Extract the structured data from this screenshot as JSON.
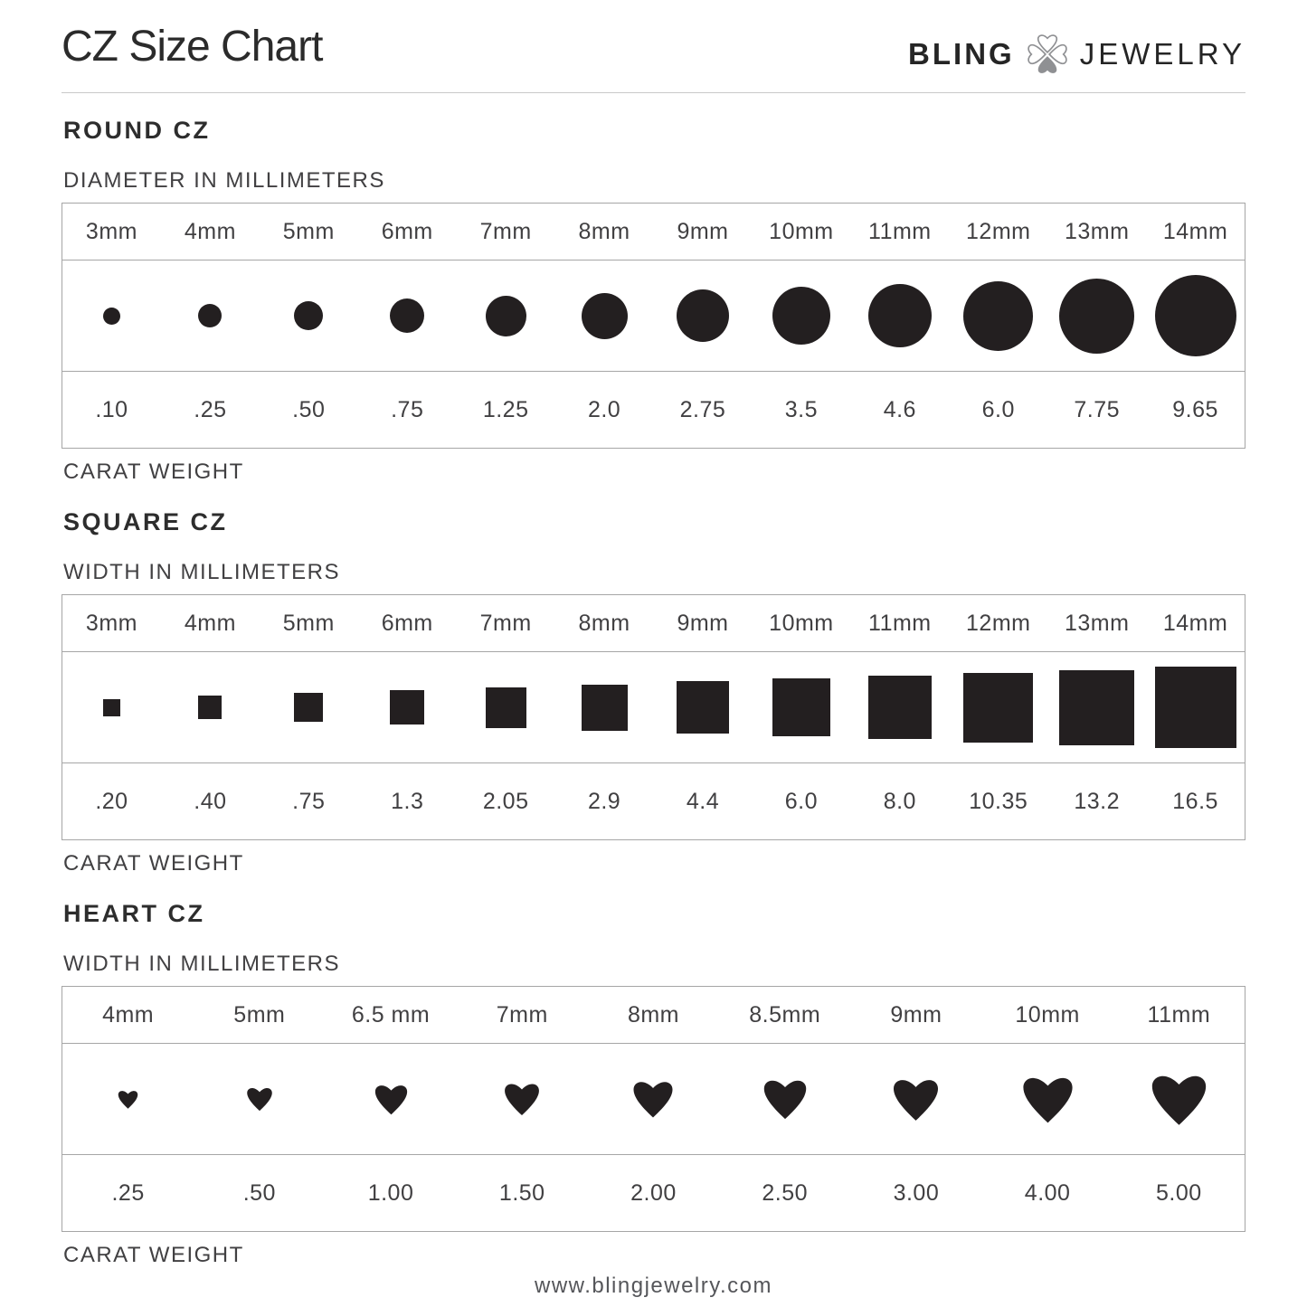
{
  "header": {
    "title": "CZ Size Chart",
    "brand": {
      "name_left": "BLING",
      "name_right": "JEWELRY",
      "clover_color": "#8f9093"
    }
  },
  "colors": {
    "shape": "#231f20",
    "border": "#a6a6a6",
    "text": "#414042"
  },
  "chart_data": [
    {
      "type": "table",
      "shape": "circle",
      "heading": "ROUND CZ",
      "dimension_label": "DIAMETER IN MILLIMETERS",
      "carat_label": "CARAT WEIGHT",
      "sizes_mm": [
        3,
        4,
        5,
        6,
        7,
        8,
        9,
        10,
        11,
        12,
        13,
        14
      ],
      "size_labels": [
        "3mm",
        "4mm",
        "5mm",
        "6mm",
        "7mm",
        "8mm",
        "9mm",
        "10mm",
        "11mm",
        "12mm",
        "13mm",
        "14mm"
      ],
      "carat_weights": [
        ".10",
        ".25",
        ".50",
        ".75",
        "1.25",
        "2.0",
        "2.75",
        "3.5",
        "4.6",
        "6.0",
        "7.75",
        "9.65"
      ]
    },
    {
      "type": "table",
      "shape": "square",
      "heading": "SQUARE CZ",
      "dimension_label": "WIDTH IN MILLIMETERS",
      "carat_label": "CARAT WEIGHT",
      "sizes_mm": [
        3,
        4,
        5,
        6,
        7,
        8,
        9,
        10,
        11,
        12,
        13,
        14
      ],
      "size_labels": [
        "3mm",
        "4mm",
        "5mm",
        "6mm",
        "7mm",
        "8mm",
        "9mm",
        "10mm",
        "11mm",
        "12mm",
        "13mm",
        "14mm"
      ],
      "carat_weights": [
        ".20",
        ".40",
        ".75",
        "1.3",
        "2.05",
        "2.9",
        "4.4",
        "6.0",
        "8.0",
        "10.35",
        "13.2",
        "16.5"
      ]
    },
    {
      "type": "table",
      "shape": "heart",
      "heading": "HEART CZ",
      "dimension_label": "WIDTH IN MILLIMETERS",
      "carat_label": "CARAT WEIGHT",
      "sizes_mm": [
        4,
        5,
        6.5,
        7,
        8,
        8.5,
        9,
        10,
        11
      ],
      "size_labels": [
        "4mm",
        "5mm",
        "6.5 mm",
        "7mm",
        "8mm",
        "8.5mm",
        "9mm",
        "10mm",
        "11mm"
      ],
      "carat_weights": [
        ".25",
        ".50",
        "1.00",
        "1.50",
        "2.00",
        "2.50",
        "3.00",
        "4.00",
        "5.00"
      ]
    }
  ],
  "footer": {
    "url": "www.blingjewelry.com"
  }
}
